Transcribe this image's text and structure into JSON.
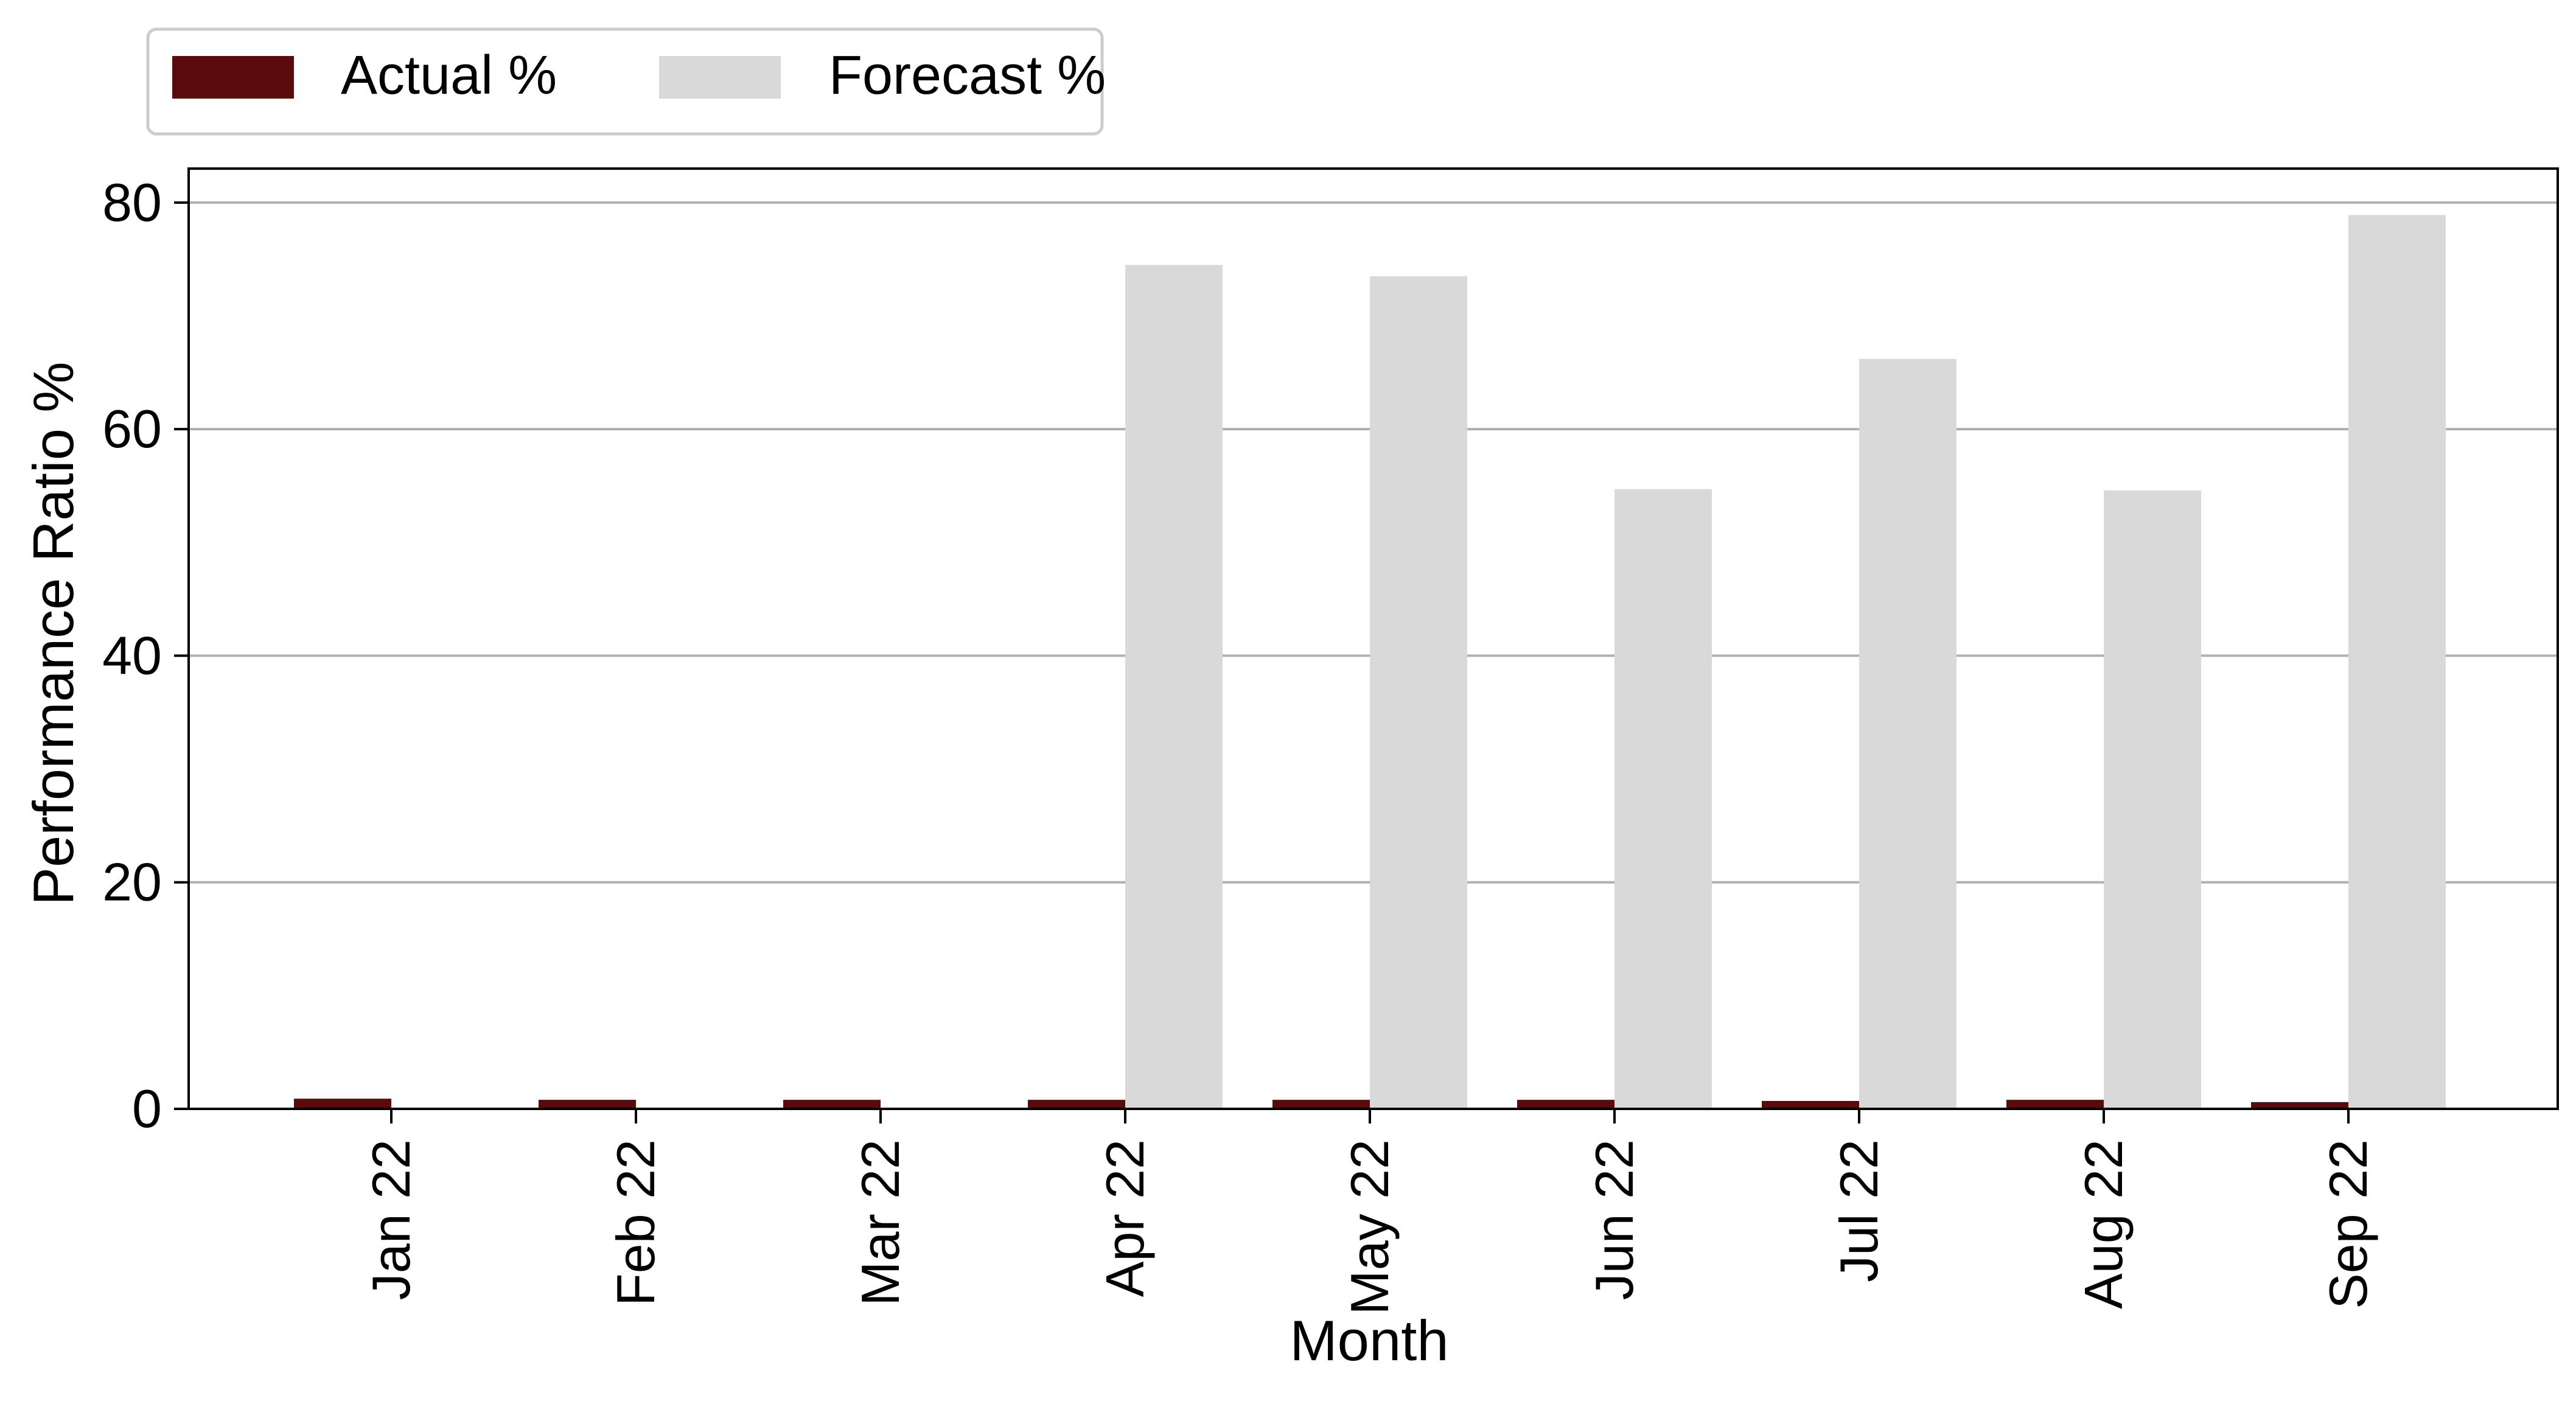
{
  "chart_data": {
    "type": "bar",
    "title": "",
    "xlabel": "Month",
    "ylabel": "Performance Ratio %",
    "categories": [
      "Jan 22",
      "Feb 22",
      "Mar 22",
      "Apr 22",
      "May 22",
      "Jun 22",
      "Jul 22",
      "Aug 22",
      "Sep 22"
    ],
    "series": [
      {
        "name": "Actual %",
        "color": "#5c0a0a",
        "values": [
          0.9,
          0.8,
          0.8,
          0.8,
          0.8,
          0.8,
          0.7,
          0.8,
          0.6
        ]
      },
      {
        "name": "Forecast %",
        "color": "#d9d9d9",
        "values": [
          0,
          0,
          0,
          74.5,
          73.5,
          54.7,
          66.2,
          54.6,
          78.9
        ]
      }
    ],
    "ylim": [
      0,
      83
    ],
    "yticks": [
      0,
      20,
      40,
      60,
      80
    ],
    "grid": "y",
    "legend_position": "top-left"
  }
}
